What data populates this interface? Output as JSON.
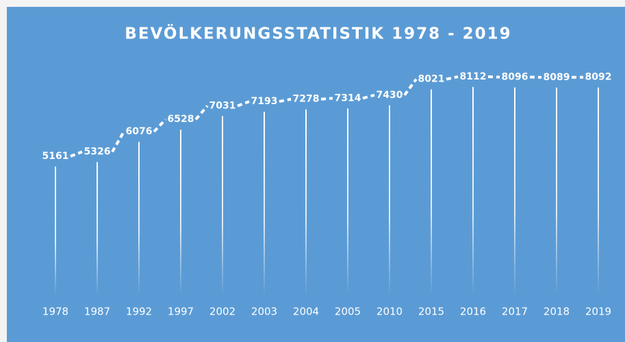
{
  "chart_data": {
    "type": "line",
    "title": "BEVÖLKERUNGSSTATISTIK 1978 - 2019",
    "categories": [
      "1978",
      "1987",
      "1992",
      "1997",
      "2002",
      "2003",
      "2004",
      "2005",
      "2010",
      "2015",
      "2016",
      "2017",
      "2018",
      "2019"
    ],
    "values": [
      5161,
      5326,
      6076,
      6528,
      7031,
      7193,
      7278,
      7314,
      7430,
      8021,
      8112,
      8096,
      8089,
      8092
    ],
    "color": "#ffffff",
    "background": "#5b9bd5",
    "ylim": [
      0,
      9000
    ]
  }
}
